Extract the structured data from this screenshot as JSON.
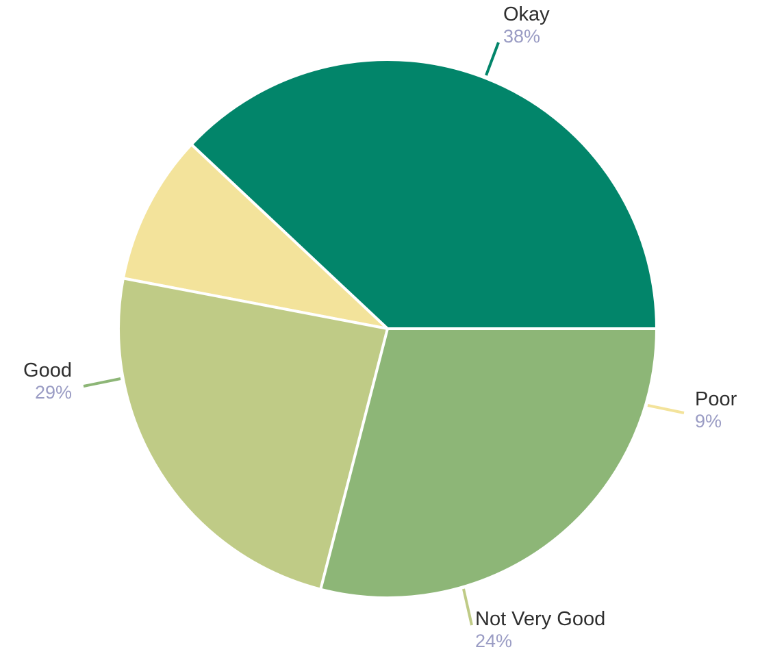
{
  "chart_data": {
    "type": "pie",
    "title": "",
    "slices": [
      {
        "label": "Okay",
        "value": 38,
        "value_label": "38%",
        "color": "#02856a"
      },
      {
        "label": "Poor",
        "value": 9,
        "value_label": "9%",
        "color": "#f3e39b"
      },
      {
        "label": "Not Very Good",
        "value": 24,
        "value_label": "24%",
        "color": "#bfcb86"
      },
      {
        "label": "Good",
        "value": 29,
        "value_label": "29%",
        "color": "#8db677"
      }
    ],
    "start_angle_deg": 0,
    "direction": "clockwise",
    "slice_borders": "#ffffff",
    "legend": "none",
    "labels": "outside-with-leader-lines"
  }
}
